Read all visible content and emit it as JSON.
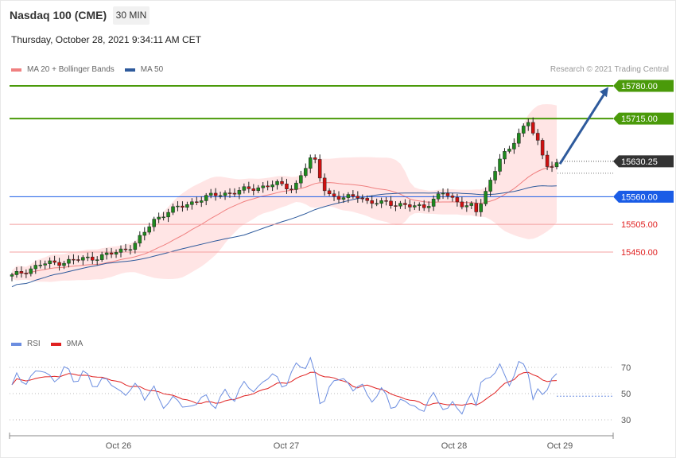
{
  "header": {
    "title": "Nasdaq 100 (CME)",
    "timeframe": "30 MIN",
    "datetime": "Thursday, October 28, 2021 9:34:11 AM CET"
  },
  "legend": {
    "ma20_label": "MA 20 + Bollinger Bands",
    "ma20_color": "#f08080",
    "ma50_label": "MA 50",
    "ma50_color": "#2e5a9c"
  },
  "copyright": "Research © 2021 Trading Central",
  "rsi_legend": {
    "rsi_label": "RSI",
    "rsi_color": "#6b8de0",
    "ma9_label": "9MA",
    "ma9_color": "#e02020"
  },
  "chart_data": {
    "type": "candlestick",
    "x_ticks": [
      "Oct 26",
      "Oct 27",
      "Oct 28",
      "Oct 29"
    ],
    "y_range": [
      15330,
      15795
    ],
    "levels": [
      {
        "value": 15780.0,
        "label": "15780.00",
        "color": "#4a9a0a",
        "kind": "resistance"
      },
      {
        "value": 15715.0,
        "label": "15715.00",
        "color": "#4a9a0a",
        "kind": "resistance"
      },
      {
        "value": 15630.25,
        "label": "15630.25",
        "color": "#333333",
        "kind": "last"
      },
      {
        "value": 15560.0,
        "label": "15560.00",
        "color": "#1a5ce6",
        "kind": "pivot"
      },
      {
        "value": 15505.0,
        "label": "15505.00",
        "color": "#e02020",
        "kind": "support"
      },
      {
        "value": 15450.0,
        "label": "15450.00",
        "color": "#e02020",
        "kind": "support"
      }
    ],
    "arrow": {
      "from": 15625,
      "to": 15778,
      "color": "#2e5a9c"
    },
    "rsi_levels": [
      70,
      50,
      30
    ],
    "rsi_range": [
      20,
      80
    ]
  }
}
